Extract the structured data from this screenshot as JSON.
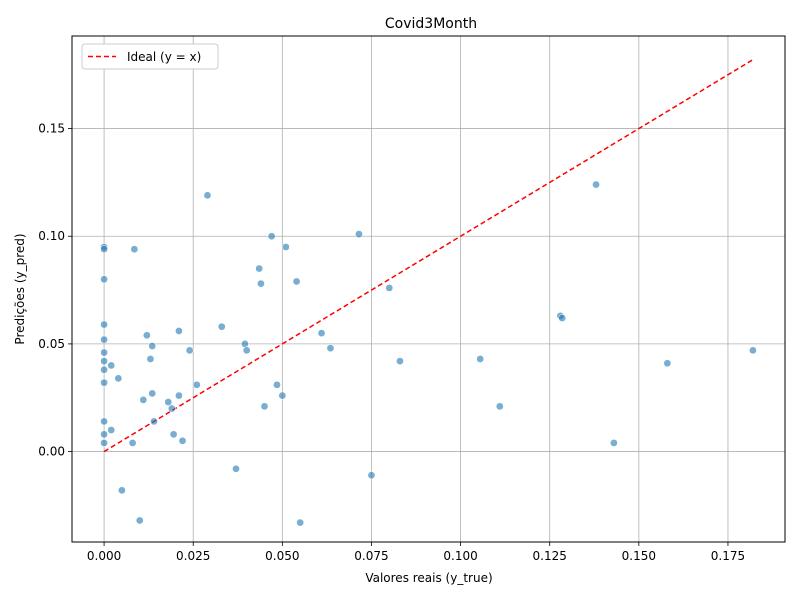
{
  "chart_data": {
    "type": "scatter",
    "title": "Covid3Month",
    "xlabel": "Valores reais (y_true)",
    "ylabel": "Predições (y_pred)",
    "xlim": [
      -0.009,
      0.191
    ],
    "ylim": [
      -0.042,
      0.193
    ],
    "x_ticks": [
      0.0,
      0.025,
      0.05,
      0.075,
      0.1,
      0.125,
      0.15,
      0.175
    ],
    "x_tick_labels": [
      "0.000",
      "0.025",
      "0.050",
      "0.075",
      "0.100",
      "0.125",
      "0.150",
      "0.175"
    ],
    "y_ticks": [
      0.0,
      0.05,
      0.1,
      0.15
    ],
    "y_tick_labels": [
      "0.00",
      "0.05",
      "0.10",
      "0.15"
    ],
    "grid": true,
    "legend_position": "top-left",
    "colors": {
      "points": "#1f77b4",
      "ideal_line": "#ff0000"
    },
    "series": [
      {
        "kind": "scatter",
        "points": [
          [
            0.0,
            0.095
          ],
          [
            0.0,
            0.094
          ],
          [
            0.0,
            0.08
          ],
          [
            0.0,
            0.059
          ],
          [
            0.0,
            0.052
          ],
          [
            0.0,
            0.046
          ],
          [
            0.0,
            0.042
          ],
          [
            0.0,
            0.038
          ],
          [
            0.0,
            0.032
          ],
          [
            0.0,
            0.014
          ],
          [
            0.0,
            0.008
          ],
          [
            0.0,
            0.004
          ],
          [
            0.002,
            0.04
          ],
          [
            0.002,
            0.01
          ],
          [
            0.004,
            0.034
          ],
          [
            0.005,
            -0.018
          ],
          [
            0.008,
            0.004
          ],
          [
            0.0085,
            0.094
          ],
          [
            0.01,
            -0.032
          ],
          [
            0.011,
            0.024
          ],
          [
            0.012,
            0.054
          ],
          [
            0.013,
            0.043
          ],
          [
            0.0135,
            0.049
          ],
          [
            0.0135,
            0.027
          ],
          [
            0.014,
            0.014
          ],
          [
            0.018,
            0.023
          ],
          [
            0.019,
            0.02
          ],
          [
            0.0195,
            0.008
          ],
          [
            0.021,
            0.056
          ],
          [
            0.021,
            0.026
          ],
          [
            0.022,
            0.005
          ],
          [
            0.024,
            0.047
          ],
          [
            0.026,
            0.031
          ],
          [
            0.029,
            0.119
          ],
          [
            0.033,
            0.058
          ],
          [
            0.037,
            -0.008
          ],
          [
            0.0395,
            0.05
          ],
          [
            0.04,
            0.047
          ],
          [
            0.0435,
            0.085
          ],
          [
            0.044,
            0.078
          ],
          [
            0.045,
            0.021
          ],
          [
            0.047,
            0.1
          ],
          [
            0.0485,
            0.031
          ],
          [
            0.05,
            0.026
          ],
          [
            0.051,
            0.095
          ],
          [
            0.054,
            0.079
          ],
          [
            0.055,
            -0.033
          ],
          [
            0.061,
            0.055
          ],
          [
            0.0635,
            0.048
          ],
          [
            0.0715,
            0.101
          ],
          [
            0.075,
            -0.011
          ],
          [
            0.08,
            0.076
          ],
          [
            0.083,
            0.042
          ],
          [
            0.1055,
            0.043
          ],
          [
            0.111,
            0.021
          ],
          [
            0.128,
            0.063
          ],
          [
            0.1285,
            0.062
          ],
          [
            0.138,
            0.124
          ],
          [
            0.143,
            0.004
          ],
          [
            0.158,
            0.041
          ],
          [
            0.182,
            0.047
          ]
        ]
      },
      {
        "kind": "line",
        "name": "Ideal (y = x)",
        "style": "dashed",
        "x": [
          0.0,
          0.182
        ],
        "y": [
          0.0,
          0.182
        ]
      }
    ]
  }
}
